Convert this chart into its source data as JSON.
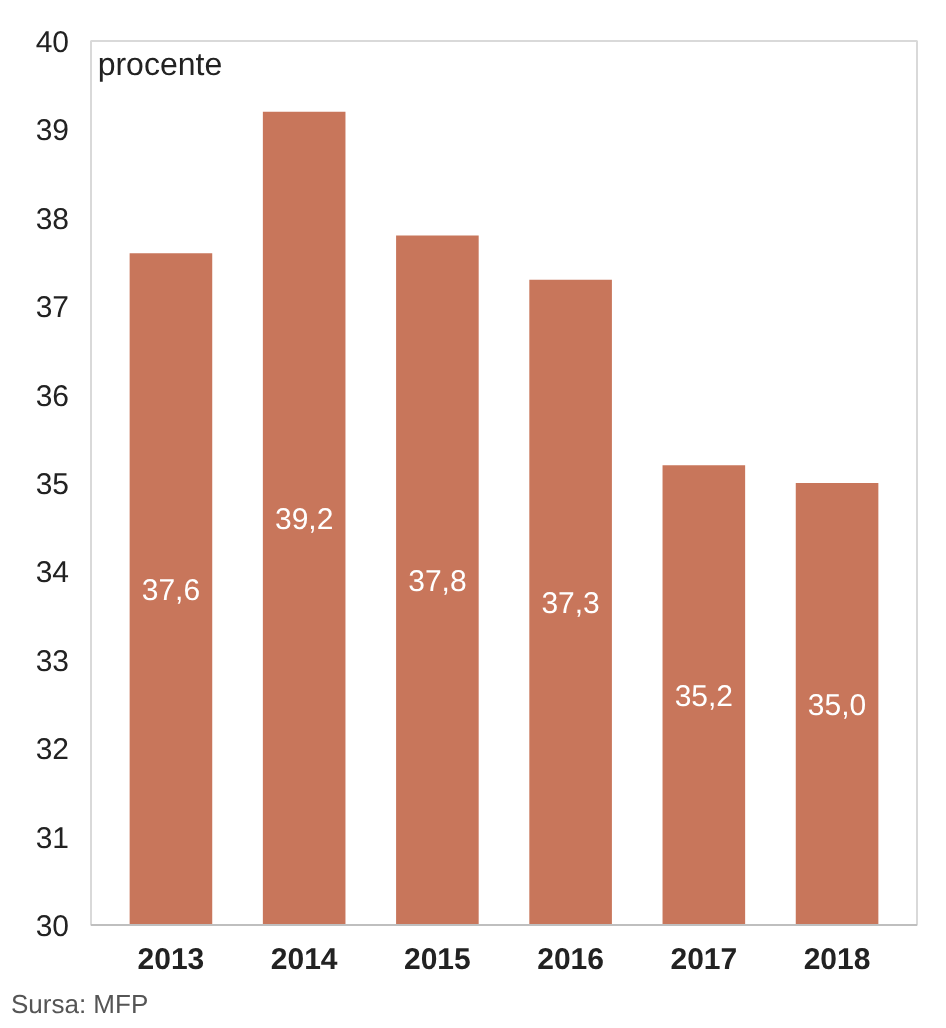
{
  "chart_data": {
    "type": "bar",
    "ylabel": "procente",
    "categories": [
      "2013",
      "2014",
      "2015",
      "2016",
      "2017",
      "2018"
    ],
    "values": [
      37.6,
      39.2,
      37.8,
      37.3,
      35.2,
      35.0
    ],
    "value_labels": [
      "37,6",
      "39,2",
      "37,8",
      "37,3",
      "35,2",
      "35,0"
    ],
    "color": "#c8765b",
    "ylim": [
      30,
      40
    ],
    "yticks": [
      30,
      31,
      32,
      33,
      34,
      35,
      36,
      37,
      38,
      39,
      40
    ],
    "grid": false,
    "annotations": [
      "Sursa: MFP"
    ]
  }
}
